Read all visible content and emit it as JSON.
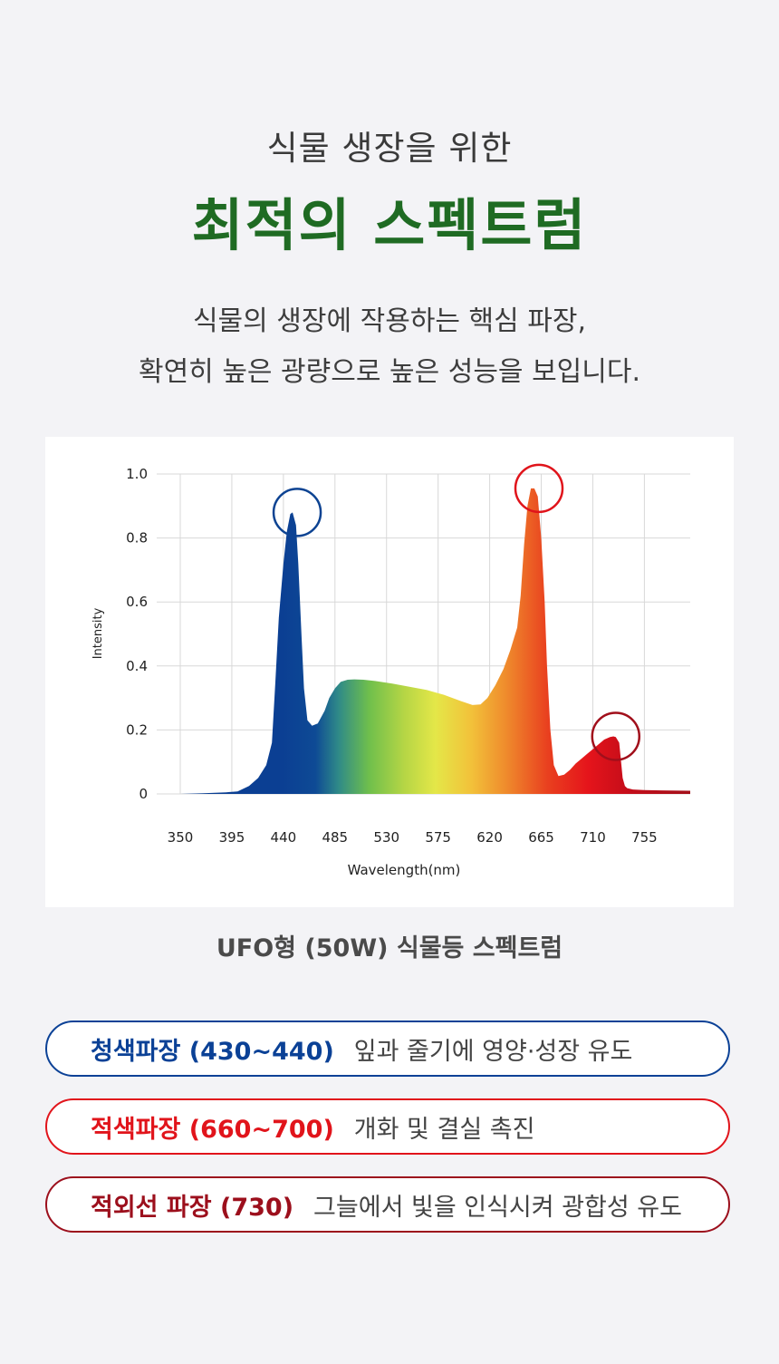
{
  "heading": {
    "subtitle": "식물 생장을 위한",
    "title": "최적의 스펙트럼"
  },
  "description": {
    "line1": "식물의 생장에 작용하는 핵심 파장,",
    "line2": "확연히 높은 광량으로 높은 성능을 보입니다."
  },
  "chart_data": {
    "type": "area",
    "xlabel": "Wavelength(nm)",
    "ylabel": "Intensity",
    "x_ticks": [
      "350",
      "395",
      "440",
      "485",
      "530",
      "575",
      "620",
      "665",
      "710",
      "755"
    ],
    "y_ticks": [
      "0",
      "0.2",
      "0.4",
      "0.6",
      "0.8",
      "1.0"
    ],
    "xlim": [
      350,
      795
    ],
    "ylim": [
      0,
      1.0
    ],
    "grid": true,
    "x": [
      350,
      370,
      390,
      400,
      410,
      418,
      425,
      430,
      433,
      436,
      440,
      443,
      446,
      448,
      451,
      453,
      456,
      458,
      461,
      465,
      470,
      476,
      480,
      485,
      490,
      496,
      502,
      510,
      520,
      535,
      550,
      565,
      580,
      595,
      605,
      612,
      618,
      625,
      632,
      638,
      644,
      647,
      650,
      653,
      656,
      659,
      662,
      665,
      668,
      670,
      673,
      676,
      680,
      685,
      690,
      695,
      700,
      705,
      710,
      715,
      720,
      725,
      728,
      730,
      733,
      736,
      738,
      740,
      745,
      755,
      770,
      795
    ],
    "y": [
      0,
      0.002,
      0.005,
      0.008,
      0.025,
      0.05,
      0.09,
      0.16,
      0.35,
      0.55,
      0.72,
      0.82,
      0.875,
      0.88,
      0.84,
      0.72,
      0.48,
      0.33,
      0.23,
      0.213,
      0.22,
      0.26,
      0.3,
      0.33,
      0.35,
      0.357,
      0.358,
      0.357,
      0.353,
      0.345,
      0.335,
      0.325,
      0.31,
      0.29,
      0.278,
      0.28,
      0.3,
      0.34,
      0.39,
      0.45,
      0.52,
      0.62,
      0.78,
      0.9,
      0.955,
      0.955,
      0.93,
      0.8,
      0.6,
      0.4,
      0.2,
      0.09,
      0.056,
      0.06,
      0.075,
      0.095,
      0.11,
      0.125,
      0.14,
      0.155,
      0.17,
      0.178,
      0.18,
      0.178,
      0.16,
      0.05,
      0.025,
      0.018,
      0.014,
      0.012,
      0.011,
      0.01
    ],
    "highlights": [
      {
        "x": 452,
        "y": 0.88,
        "color": "#0d4392"
      },
      {
        "x": 663,
        "y": 0.955,
        "color": "#e0141b"
      },
      {
        "x": 730,
        "y": 0.18,
        "color": "#a10f1b"
      }
    ]
  },
  "caption": "UFO형 (50W) 식물등 스펙트럼",
  "bands": [
    {
      "key": "청색파장 (430~440)",
      "value": "잎과 줄기에 영양·성장 유도",
      "color": "#0b4196"
    },
    {
      "key": "적색파장 (660~700)",
      "value": "개화 및 결실 촉진",
      "color": "#e1141b"
    },
    {
      "key": "적외선 파장 (730)",
      "value": "그늘에서 빛을 인식시켜 광합성 유도",
      "color": "#9c0f1c"
    }
  ]
}
